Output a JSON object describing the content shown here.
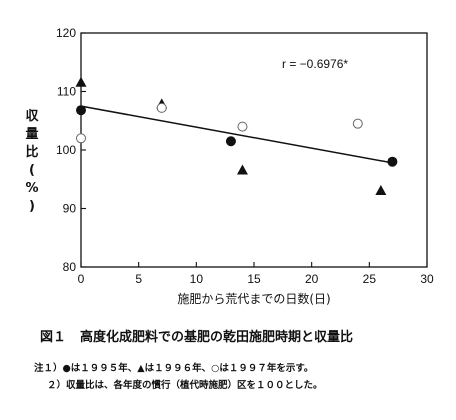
{
  "chart_data": {
    "type": "scatter",
    "xlabel": "施肥から荒代までの日数(日)",
    "ylabel_chars": [
      "収",
      "量",
      "比",
      "(",
      "%",
      ")"
    ],
    "xlim": [
      0,
      30
    ],
    "ylim": [
      80,
      120
    ],
    "x_ticks": [
      0,
      5,
      10,
      15,
      20,
      25,
      30
    ],
    "y_ticks": [
      80,
      90,
      100,
      110,
      120
    ],
    "grid": false,
    "series": [
      {
        "marker": "filled-circle",
        "points": [
          [
            0,
            106.8
          ],
          [
            13,
            101.5
          ],
          [
            27,
            98.0
          ]
        ]
      },
      {
        "marker": "filled-triangle",
        "points": [
          [
            0,
            111.5
          ],
          [
            7,
            107.8
          ],
          [
            14,
            96.5
          ],
          [
            26,
            93.0
          ]
        ]
      },
      {
        "marker": "open-circle",
        "points": [
          [
            0,
            102.0
          ],
          [
            7,
            107.2
          ],
          [
            14,
            104.0
          ],
          [
            24,
            104.5
          ]
        ]
      }
    ],
    "regression_line": {
      "x": [
        0,
        27
      ],
      "y": [
        107.5,
        97.8
      ]
    },
    "annotation": "r = −0.6976*"
  },
  "caption": {
    "figure_number": "図１",
    "title": "高度化成肥料での基肥の乾田施肥時期と収量比"
  },
  "notes": [
    "注１）●は１９９５年、▲は１９９６年、○は１９９７年を示す。",
    "２）収量比は、各年度の慣行（植代時施肥）区を１００とした。"
  ]
}
